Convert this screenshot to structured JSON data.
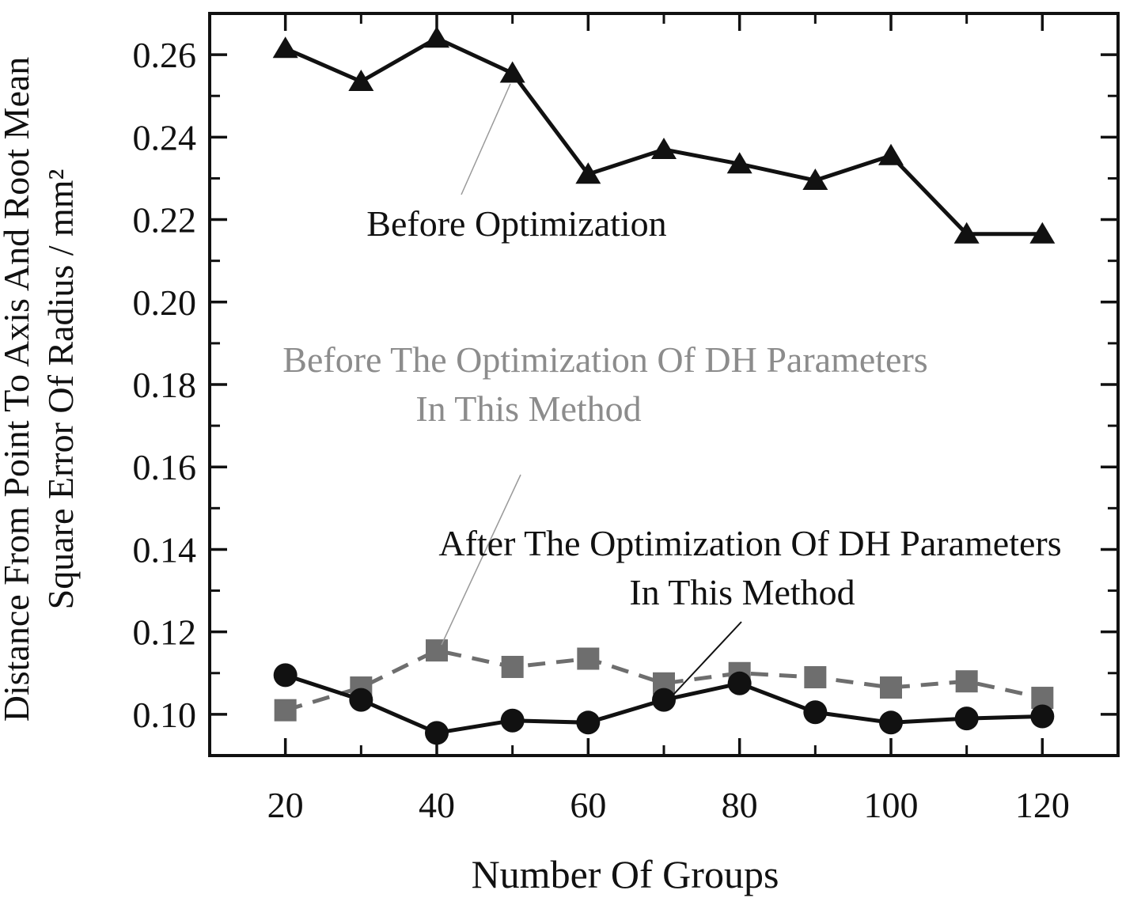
{
  "figure": {
    "xlabel": "Number Of Groups",
    "ylabel_line1": "Distance From Point To Axis And Root Mean",
    "ylabel_line2": "Square Error Of Radius / mm²"
  },
  "annotations": {
    "before_opt": "Before Optimization",
    "before_dh_line1": "Before The Optimization Of DH Parameters",
    "before_dh_line2": "In This Method",
    "after_dh_line1": "After The Optimization Of DH Parameters",
    "after_dh_line2": "In This Method"
  },
  "colors": {
    "axis": "#111111",
    "series_black": "#111111",
    "series_gray": "#6e6e6e",
    "text_gray": "#8c8c8c",
    "leader_gray": "#999999",
    "leader_black": "#111111"
  },
  "chart_data": {
    "type": "line",
    "title": "",
    "xlabel": "Number Of Groups",
    "ylabel": "Distance From Point To Axis And Root Mean Square Error Of Radius / mm²",
    "grid": false,
    "legend_position": "inline-annotations",
    "xlim": [
      10,
      130
    ],
    "ylim": [
      0.09,
      0.27
    ],
    "x": [
      20,
      30,
      40,
      50,
      60,
      70,
      80,
      90,
      100,
      110,
      120
    ],
    "series": [
      {
        "name": "Before Optimization",
        "marker": "triangle",
        "line": "solid",
        "color": "#111111",
        "values": [
          0.2615,
          0.2535,
          0.264,
          0.2555,
          0.231,
          0.237,
          0.2335,
          0.2295,
          0.2355,
          0.2165,
          0.2165
        ]
      },
      {
        "name": "Before The Optimization Of DH Parameters In This Method",
        "marker": "square",
        "line": "dashed",
        "color": "#6e6e6e",
        "values": [
          0.101,
          0.1065,
          0.1155,
          0.1115,
          0.1135,
          0.1075,
          0.11,
          0.109,
          0.1065,
          0.108,
          0.104
        ]
      },
      {
        "name": "After The Optimization Of DH Parameters In This Method",
        "marker": "circle",
        "line": "solid",
        "color": "#111111",
        "values": [
          0.1095,
          0.1035,
          0.0955,
          0.0985,
          0.098,
          0.1035,
          0.1075,
          0.1005,
          0.098,
          0.099,
          0.0995
        ]
      }
    ],
    "x_major_ticks": [
      20,
      40,
      60,
      80,
      100,
      120
    ],
    "x_major_tick_labels": [
      "20",
      "40",
      "60",
      "80",
      "100",
      "120"
    ],
    "x_minor_ticks": [
      30,
      50,
      70,
      90,
      110
    ],
    "y_major_ticks": [
      0.1,
      0.12,
      0.14,
      0.16,
      0.18,
      0.2,
      0.22,
      0.24,
      0.26
    ],
    "y_major_tick_labels": [
      "0.10",
      "0.12",
      "0.14",
      "0.16",
      "0.18",
      "0.20",
      "0.22",
      "0.24",
      "0.26"
    ],
    "y_minor_ticks": [
      0.11,
      0.13,
      0.15,
      0.17,
      0.19,
      0.21,
      0.23,
      0.25
    ]
  }
}
